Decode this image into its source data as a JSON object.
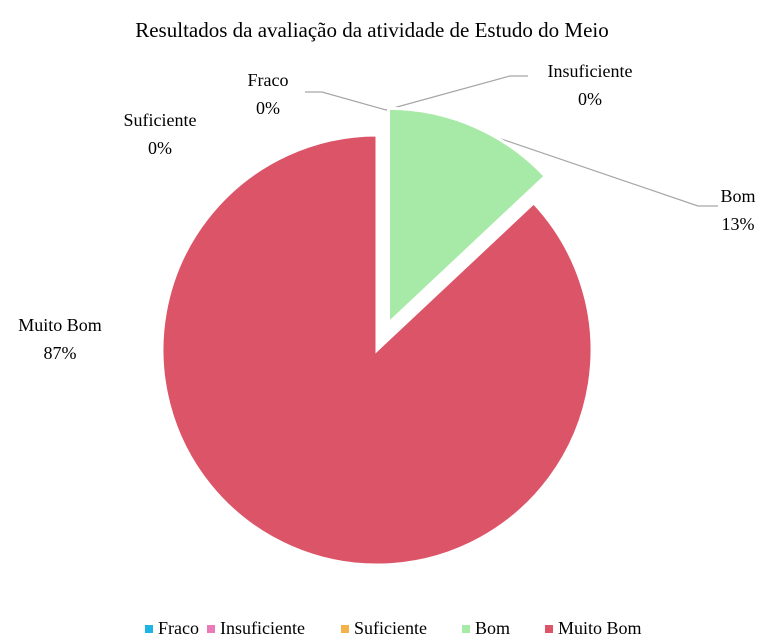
{
  "chart_data": {
    "type": "pie",
    "title": "Resultados da avaliação da atividade de Estudo do Meio",
    "categories": [
      "Fraco",
      "Insuficiente",
      "Suficiente",
      "Bom",
      "Muito Bom"
    ],
    "values": [
      0,
      0,
      0,
      13,
      87
    ],
    "value_labels": [
      "0%",
      "0%",
      "0%",
      "13%",
      "87%"
    ],
    "colors": [
      "#1fb4e4",
      "#ea7bb6",
      "#f3b24a",
      "#a7eaa7",
      "#dc5467"
    ],
    "legend": "bottom"
  }
}
